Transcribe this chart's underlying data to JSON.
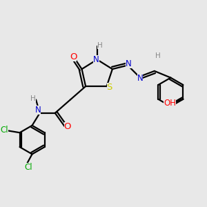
{
  "background_color": "#e8e8e8",
  "atom_colors": {
    "C": "#000000",
    "N": "#0000cc",
    "O": "#ff0000",
    "S": "#cccc00",
    "Cl": "#00aa00",
    "H": "#888888"
  },
  "bond_color": "#000000",
  "figsize": [
    3.0,
    3.0
  ],
  "dpi": 100
}
